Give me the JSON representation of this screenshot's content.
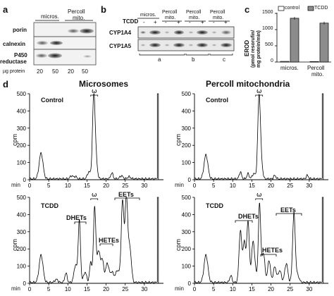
{
  "panel_a": {
    "letter": "a",
    "col_micros": "micros.",
    "col_percoll": "Percoll",
    "col_mito": "mito.",
    "rows": [
      "porin",
      "calnexin",
      "P450",
      "reductase"
    ],
    "xaxis_label": "µg protein",
    "lanes": [
      "20",
      "50",
      "20",
      "50"
    ]
  },
  "panel_b": {
    "letter": "b",
    "tcdd_label": "TCDD",
    "group_labels": [
      "micros.",
      "Percoll",
      "Percoll",
      "Percoll"
    ],
    "group_labels2": [
      "",
      "mito.",
      "mito.",
      "mito."
    ],
    "signs": [
      "-",
      "+",
      "-",
      "+",
      "-",
      "+",
      "-",
      "+"
    ],
    "rows": [
      "CYP1A4",
      "CYP1A5"
    ],
    "blot_groups": [
      "a",
      "b",
      "c"
    ]
  },
  "panel_c": {
    "letter": "c",
    "legend": [
      "control",
      "TCDD"
    ],
    "ylabel_1": "EROD",
    "ylabel_2": "(pmol resorufin/",
    "ylabel_3": "mg protein/min)",
    "yticks": [
      "0",
      "500",
      "1000",
      "1500"
    ],
    "categories": [
      "micros.",
      "Percoll",
      "mito."
    ]
  },
  "panel_d": {
    "letter": "d",
    "col_titles": [
      "Microsomes",
      "Percoll mitochondria"
    ],
    "row_labels": [
      "Control",
      "TCDD",
      "Control",
      "TCDD"
    ],
    "ylabel": "cpm",
    "xlabel": "min",
    "yticks": [
      "0",
      "100",
      "200",
      "300",
      "400",
      "500"
    ],
    "xticks": [
      "0",
      "5",
      "10",
      "15",
      "20",
      "25",
      "30"
    ],
    "omega": "ω",
    "annotations": [
      "DHETs",
      "HETEs",
      "EETs"
    ]
  },
  "chart_data": {
    "type": "bar",
    "categories": [
      "micros.",
      "Percoll mito."
    ],
    "series": [
      {
        "name": "control",
        "values": [
          20,
          15
        ]
      },
      {
        "name": "TCDD",
        "values": [
          1350,
          1200
        ]
      }
    ],
    "ylabel": "EROD (pmol resorufin/ mg protein/min)",
    "ylim": [
      0,
      1500
    ],
    "colors": {
      "control": "#ffffff",
      "TCDD": "#8c8c8c"
    }
  }
}
